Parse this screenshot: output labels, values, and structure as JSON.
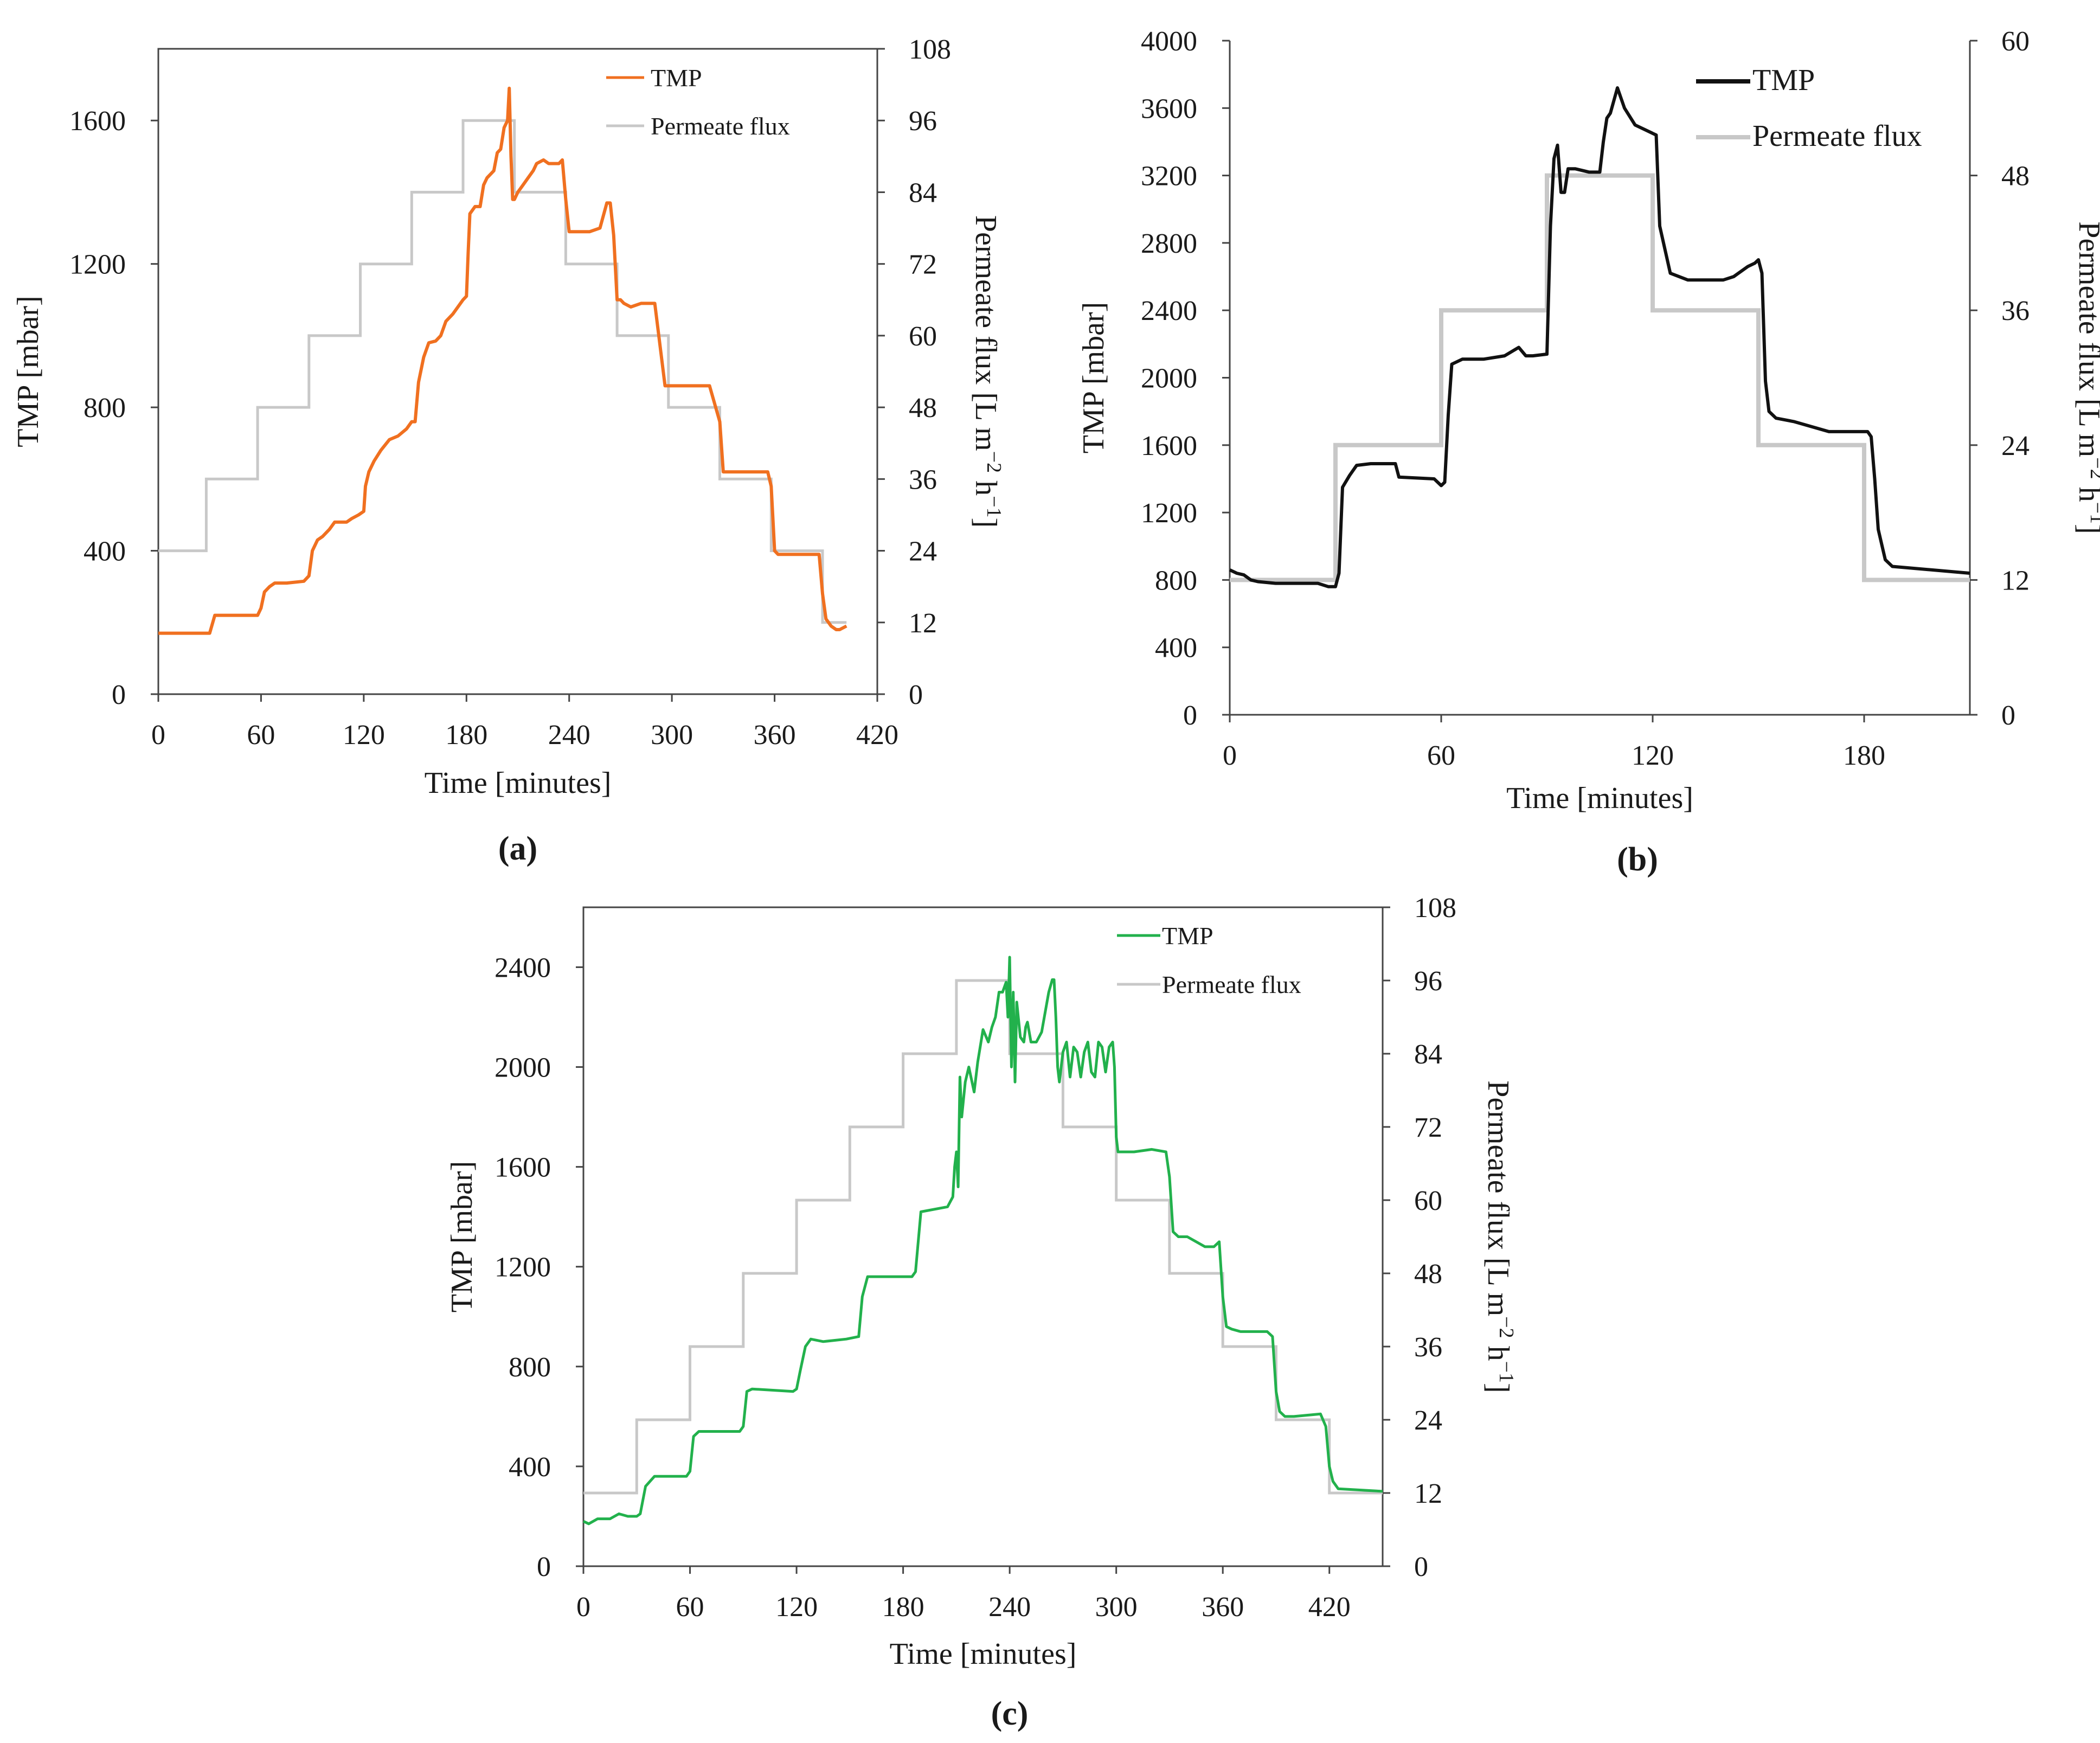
{
  "colors": {
    "tmp_a": "#f07020",
    "tmp_b": "#111111",
    "tmp_c": "#22b14c",
    "flux": "#c8c8c8",
    "axis": "#444444"
  },
  "chart_data": [
    {
      "panel": "(a)",
      "type": "line",
      "xlabel": "Time [minutes]",
      "ylabel": "TMP [mbar]",
      "y2label_main": "Permeate flux [L m",
      "y2label_sup1": "−2",
      "y2label_mid": " h",
      "y2label_sup2": "−1",
      "y2label_end": "]",
      "xlim": [
        0,
        420
      ],
      "ylim": [
        0,
        1800
      ],
      "y2lim": [
        0,
        108
      ],
      "xticks": [
        0,
        60,
        120,
        180,
        240,
        300,
        360,
        420
      ],
      "yticks": [
        0,
        400,
        800,
        1200,
        1600
      ],
      "y2ticks": [
        0,
        12,
        24,
        36,
        48,
        60,
        72,
        84,
        96,
        108
      ],
      "legend": [
        "TMP",
        "Permeate flux"
      ],
      "legend_position": "top-right",
      "series": [
        {
          "name": "TMP",
          "axis": "left",
          "x": [
            0,
            28,
            30,
            33,
            58,
            60,
            62,
            65,
            68,
            75,
            85,
            88,
            90,
            93,
            96,
            100,
            103,
            110,
            113,
            117,
            120,
            121,
            123,
            126,
            130,
            135,
            140,
            145,
            148,
            150,
            152,
            155,
            158,
            162,
            165,
            168,
            172,
            175,
            178,
            180,
            181,
            182,
            185,
            188,
            190,
            192,
            196,
            198,
            200,
            202,
            204,
            205,
            206,
            207,
            208,
            209,
            210,
            213,
            216,
            219,
            221,
            225,
            228,
            232,
            234,
            236,
            238,
            240,
            245,
            252,
            258,
            262,
            264,
            266,
            268,
            270,
            272,
            276,
            282,
            290,
            296,
            298,
            300,
            312,
            322,
            328,
            330,
            332,
            345,
            356,
            358,
            360,
            362,
            375,
            386,
            388,
            390,
            393,
            396,
            398,
            402
          ],
          "values": [
            170,
            170,
            170,
            220,
            220,
            240,
            285,
            300,
            310,
            310,
            315,
            330,
            400,
            430,
            440,
            460,
            480,
            480,
            490,
            500,
            510,
            580,
            620,
            650,
            680,
            710,
            720,
            740,
            760,
            760,
            870,
            940,
            980,
            985,
            1000,
            1040,
            1060,
            1080,
            1100,
            1110,
            1230,
            1340,
            1360,
            1360,
            1420,
            1440,
            1460,
            1510,
            1520,
            1580,
            1600,
            1690,
            1500,
            1380,
            1380,
            1390,
            1400,
            1420,
            1440,
            1460,
            1480,
            1490,
            1480,
            1480,
            1480,
            1490,
            1380,
            1290,
            1290,
            1290,
            1300,
            1370,
            1370,
            1280,
            1100,
            1100,
            1090,
            1080,
            1090,
            1090,
            860,
            860,
            860,
            860,
            860,
            760,
            620,
            620,
            620,
            620,
            580,
            400,
            390,
            390,
            390,
            280,
            210,
            190,
            180,
            180,
            190
          ]
        },
        {
          "name": "Permeate flux",
          "axis": "right",
          "x": [
            0,
            28,
            28,
            58,
            58,
            88,
            88,
            118,
            118,
            148,
            148,
            178,
            178,
            208,
            208,
            238,
            238,
            268,
            268,
            298,
            298,
            328,
            328,
            358,
            358,
            388,
            388,
            402
          ],
          "values": [
            24,
            24,
            36,
            36,
            48,
            48,
            60,
            60,
            72,
            72,
            84,
            84,
            96,
            96,
            84,
            84,
            72,
            72,
            60,
            60,
            48,
            48,
            36,
            36,
            24,
            24,
            12,
            12
          ]
        }
      ]
    },
    {
      "panel": "(b)",
      "type": "line",
      "xlabel": "Time [minutes]",
      "ylabel": "TMP [mbar]",
      "y2label_main": "Permeate flux [L m",
      "y2label_sup1": "−2",
      "y2label_mid": " h",
      "y2label_sup2": "−1",
      "y2label_end": "]",
      "xlim": [
        0,
        210
      ],
      "ylim": [
        0,
        4000
      ],
      "y2lim": [
        0,
        60
      ],
      "xticks": [
        0,
        60,
        120,
        180
      ],
      "yticks": [
        0,
        400,
        800,
        1200,
        1600,
        2000,
        2400,
        2800,
        3200,
        3600,
        4000
      ],
      "y2ticks": [
        0,
        12,
        24,
        36,
        48,
        60
      ],
      "legend": [
        "TMP",
        "Permeate flux"
      ],
      "legend_position": "top-right",
      "series": [
        {
          "name": "TMP",
          "axis": "left",
          "x": [
            0,
            2,
            4,
            6,
            8,
            13,
            25,
            28,
            30,
            31,
            32,
            34,
            36,
            40,
            47,
            48,
            58,
            60,
            61,
            62,
            63,
            66,
            72,
            78,
            82,
            84,
            86,
            90,
            91,
            92,
            93,
            94,
            95,
            96,
            98,
            102,
            105,
            106,
            107,
            108,
            110,
            112,
            115,
            120,
            121,
            122,
            125,
            130,
            138,
            140,
            143,
            147,
            149,
            150,
            151,
            152,
            153,
            155,
            160,
            170,
            180,
            181,
            182,
            183,
            184,
            186,
            188,
            210
          ],
          "values": [
            860,
            840,
            830,
            800,
            790,
            780,
            780,
            760,
            760,
            840,
            1350,
            1420,
            1480,
            1490,
            1490,
            1410,
            1400,
            1360,
            1380,
            1780,
            2080,
            2110,
            2110,
            2130,
            2180,
            2130,
            2130,
            2140,
            2900,
            3300,
            3380,
            3100,
            3100,
            3240,
            3240,
            3220,
            3220,
            3400,
            3540,
            3570,
            3720,
            3600,
            3500,
            3450,
            3440,
            2900,
            2620,
            2580,
            2580,
            2580,
            2600,
            2660,
            2680,
            2700,
            2620,
            1980,
            1800,
            1760,
            1740,
            1680,
            1680,
            1680,
            1650,
            1400,
            1100,
            920,
            880,
            840
          ]
        },
        {
          "name": "Permeate flux",
          "axis": "right",
          "x": [
            0,
            30,
            30,
            60,
            60,
            90,
            90,
            120,
            120,
            150,
            150,
            180,
            180,
            210
          ],
          "values": [
            12,
            12,
            24,
            24,
            36,
            36,
            48,
            48,
            36,
            36,
            24,
            24,
            12,
            12
          ]
        }
      ]
    },
    {
      "panel": "(c)",
      "type": "line",
      "xlabel": "Time [minutes]",
      "ylabel": "TMP [mbar]",
      "y2label_main": "Permeate flux [L m",
      "y2label_sup1": "−2",
      "y2label_mid": " h",
      "y2label_sup2": "−1",
      "y2label_end": "]",
      "xlim": [
        0,
        450
      ],
      "ylim": [
        0,
        2640
      ],
      "y2lim": [
        0,
        108
      ],
      "xticks": [
        0,
        60,
        120,
        180,
        240,
        300,
        360,
        420
      ],
      "yticks": [
        0,
        400,
        800,
        1200,
        1600,
        2000,
        2400
      ],
      "y2ticks": [
        0,
        12,
        24,
        36,
        48,
        60,
        72,
        84,
        96,
        108
      ],
      "legend": [
        "TMP",
        "Permeate flux"
      ],
      "legend_position": "top-right",
      "series": [
        {
          "name": "TMP",
          "axis": "left",
          "x": [
            0,
            3,
            8,
            15,
            20,
            25,
            30,
            32,
            35,
            40,
            58,
            60,
            62,
            65,
            88,
            90,
            92,
            95,
            118,
            120,
            122,
            125,
            128,
            135,
            148,
            155,
            157,
            160,
            185,
            187,
            190,
            205,
            208,
            209,
            210,
            211,
            212,
            213,
            215,
            217,
            220,
            222,
            225,
            228,
            230,
            232,
            234,
            236,
            238,
            239,
            240,
            241,
            242,
            243,
            244,
            246,
            248,
            249,
            250,
            252,
            255,
            258,
            262,
            264,
            265,
            266,
            267,
            268,
            269,
            270,
            272,
            274,
            276,
            278,
            280,
            282,
            284,
            286,
            288,
            290,
            292,
            294,
            296,
            298,
            299,
            300,
            301,
            302,
            305,
            310,
            320,
            328,
            330,
            332,
            335,
            340,
            350,
            355,
            358,
            360,
            362,
            365,
            370,
            385,
            388,
            390,
            392,
            395,
            400,
            415,
            418,
            420,
            422,
            425,
            450
          ],
          "values": [
            180,
            170,
            190,
            190,
            210,
            200,
            200,
            210,
            320,
            360,
            360,
            380,
            520,
            540,
            540,
            560,
            700,
            710,
            700,
            710,
            780,
            880,
            910,
            900,
            910,
            920,
            1080,
            1160,
            1160,
            1180,
            1420,
            1440,
            1480,
            1600,
            1660,
            1520,
            1960,
            1800,
            1940,
            2000,
            1900,
            2020,
            2150,
            2100,
            2160,
            2200,
            2300,
            2300,
            2340,
            2200,
            2440,
            2000,
            2300,
            1940,
            2260,
            2120,
            2100,
            2160,
            2180,
            2100,
            2100,
            2140,
            2300,
            2350,
            2350,
            2200,
            2000,
            1940,
            2000,
            2060,
            2100,
            1960,
            2080,
            2060,
            1960,
            2060,
            2100,
            1980,
            1960,
            2100,
            2080,
            1980,
            2080,
            2100,
            2000,
            1720,
            1660,
            1660,
            1660,
            1660,
            1670,
            1660,
            1560,
            1340,
            1320,
            1320,
            1280,
            1280,
            1300,
            1080,
            960,
            950,
            940,
            940,
            920,
            700,
            620,
            600,
            600,
            610,
            560,
            400,
            340,
            310,
            300
          ]
        },
        {
          "name": "Permeate flux",
          "axis": "right",
          "x": [
            0,
            30,
            30,
            60,
            60,
            90,
            90,
            120,
            120,
            150,
            150,
            180,
            180,
            210,
            210,
            240,
            240,
            270,
            270,
            300,
            300,
            330,
            330,
            360,
            360,
            390,
            390,
            420,
            420,
            450
          ],
          "values": [
            12,
            12,
            24,
            24,
            36,
            36,
            48,
            48,
            60,
            60,
            72,
            72,
            84,
            84,
            96,
            96,
            84,
            84,
            72,
            72,
            60,
            60,
            48,
            48,
            36,
            36,
            24,
            24,
            12,
            12
          ]
        }
      ]
    }
  ]
}
